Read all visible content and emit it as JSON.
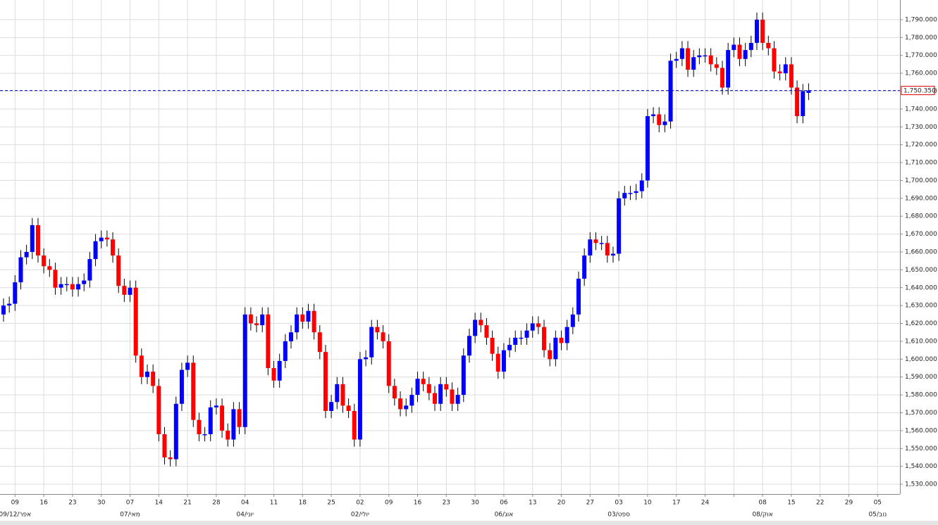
{
  "chart_data": {
    "type": "candlestick",
    "up_color": "#0000ff",
    "down_color": "#ff0000",
    "grid": true,
    "ylim": [
      1524.5,
      1801
    ],
    "yticks": [
      {
        "value": 1530,
        "label": "1,530.000"
      },
      {
        "value": 1540,
        "label": "1,540.000"
      },
      {
        "value": 1550,
        "label": "1,550.000"
      },
      {
        "value": 1560,
        "label": "1,560.000"
      },
      {
        "value": 1570,
        "label": "1,570.000"
      },
      {
        "value": 1580,
        "label": "1,580.000"
      },
      {
        "value": 1590,
        "label": "1,590.000"
      },
      {
        "value": 1600,
        "label": "1,600.000"
      },
      {
        "value": 1610,
        "label": "1,610.000"
      },
      {
        "value": 1620,
        "label": "1,620.000"
      },
      {
        "value": 1630,
        "label": "1,630.000"
      },
      {
        "value": 1640,
        "label": "1,640.000"
      },
      {
        "value": 1650,
        "label": "1,650.000"
      },
      {
        "value": 1660,
        "label": "1,660.000"
      },
      {
        "value": 1670,
        "label": "1,670.000"
      },
      {
        "value": 1680,
        "label": "1,680.000"
      },
      {
        "value": 1690,
        "label": "1,690.000"
      },
      {
        "value": 1700,
        "label": "1,700.000"
      },
      {
        "value": 1710,
        "label": "1,710.000"
      },
      {
        "value": 1720,
        "label": "1,720.000"
      },
      {
        "value": 1730,
        "label": "1,730.000"
      },
      {
        "value": 1740,
        "label": "1,740.000"
      },
      {
        "value": 1750,
        "label": "1,750.000"
      },
      {
        "value": 1760,
        "label": "1,760.000"
      },
      {
        "value": 1770,
        "label": "1,770.000"
      },
      {
        "value": 1780,
        "label": "1,780.000"
      },
      {
        "value": 1790,
        "label": "1,790.000"
      }
    ],
    "last_price": {
      "value": 1750.35,
      "label": "1,750.350",
      "color": "#0000cc"
    },
    "categories": [
      null,
      null,
      "09",
      null,
      null,
      null,
      null,
      "16",
      null,
      null,
      null,
      null,
      "23",
      null,
      null,
      null,
      null,
      "30",
      null,
      null,
      null,
      null,
      "07",
      null,
      null,
      null,
      null,
      "14",
      null,
      null,
      null,
      null,
      "21",
      null,
      null,
      null,
      null,
      "28",
      null,
      null,
      null,
      null,
      "04",
      null,
      null,
      null,
      null,
      "11",
      null,
      null,
      null,
      null,
      "18",
      null,
      null,
      null,
      null,
      "25",
      null,
      null,
      null,
      null,
      "02",
      null,
      null,
      null,
      null,
      "09",
      null,
      null,
      null,
      null,
      "16",
      null,
      null,
      null,
      null,
      "23",
      null,
      null,
      null,
      null,
      "30",
      null,
      null,
      null,
      null,
      "06",
      null,
      null,
      null,
      null,
      "13",
      null,
      null,
      null,
      null,
      "20",
      null,
      null,
      null,
      null,
      "27",
      null,
      null,
      null,
      null,
      "03",
      null,
      null,
      null,
      null,
      "10",
      null,
      null,
      null,
      null,
      "17",
      null,
      null,
      null,
      null,
      "24",
      null,
      null,
      null,
      null,
      null,
      null,
      null,
      null,
      null,
      "08",
      null,
      null,
      null,
      null,
      "15",
      null,
      null,
      null,
      null,
      "22",
      null,
      null,
      null,
      null,
      "29",
      null,
      null,
      null,
      null,
      "05"
    ],
    "categories2": [
      null,
      null,
      "09/12/אפר",
      null,
      null,
      null,
      null,
      null,
      null,
      null,
      null,
      null,
      null,
      null,
      null,
      null,
      null,
      null,
      null,
      null,
      null,
      null,
      "מאי/07",
      null,
      null,
      null,
      null,
      null,
      null,
      null,
      null,
      null,
      null,
      null,
      null,
      null,
      null,
      null,
      null,
      null,
      null,
      null,
      "יוני/04",
      null,
      null,
      null,
      null,
      null,
      null,
      null,
      null,
      null,
      null,
      null,
      null,
      null,
      null,
      null,
      null,
      null,
      null,
      null,
      "יולי/02",
      null,
      null,
      null,
      null,
      null,
      null,
      null,
      null,
      null,
      null,
      null,
      null,
      null,
      null,
      null,
      null,
      null,
      null,
      null,
      null,
      null,
      null,
      null,
      null,
      "אוג/06",
      null,
      null,
      null,
      null,
      null,
      null,
      null,
      null,
      null,
      null,
      null,
      null,
      null,
      null,
      null,
      null,
      null,
      null,
      null,
      "ספט/03",
      null,
      null,
      null,
      null,
      null,
      null,
      null,
      null,
      null,
      null,
      null,
      null,
      null,
      null,
      null,
      null,
      null,
      null,
      null,
      null,
      null,
      null,
      null,
      null,
      "אוק/08",
      null,
      null,
      null,
      null,
      null,
      null,
      null,
      null,
      null,
      null,
      null,
      null,
      null,
      null,
      null,
      null,
      null,
      null,
      null,
      "נוב/05"
    ],
    "open": [
      1625,
      1630,
      1631,
      1643,
      1657,
      1660,
      1675,
      1658,
      1652,
      1650,
      1640,
      1642,
      1642,
      1639,
      1642,
      1644,
      1656,
      1666,
      1668,
      1667,
      1658,
      1641,
      1636,
      1640,
      1602,
      1590,
      1593,
      1585,
      1558,
      1545,
      1544,
      1575,
      1594,
      1598,
      1566,
      1558,
      1558,
      1573,
      1574,
      1560,
      1555,
      1572,
      1562,
      1625,
      1620,
      1619,
      1625,
      1595,
      1588,
      1599,
      1610,
      1615,
      1625,
      1621,
      1627,
      1615,
      1604,
      1571,
      1576,
      1586,
      1574,
      1571,
      1555,
      1600,
      1601,
      1618,
      1615,
      1610,
      1585,
      1578,
      1572,
      1574,
      1580,
      1589,
      1586,
      1581,
      1575,
      1586,
      1583,
      1575,
      1580,
      1602,
      1613,
      1622,
      1619,
      1612,
      1603,
      1593,
      1605,
      1608,
      1612,
      1612,
      1616,
      1620,
      1618,
      1605,
      1600,
      1612,
      1609,
      1618,
      1625,
      1645,
      1658,
      1667,
      1665,
      1665,
      1658,
      1659,
      1690,
      1693,
      1693,
      1694,
      1700,
      1736,
      1737,
      1731,
      1733,
      1767,
      1768,
      1774,
      1762,
      1769,
      1770,
      1770,
      1765,
      1763,
      1752,
      1773,
      1776,
      1768,
      1773,
      1777,
      1790,
      1777,
      1774,
      1761,
      1760,
      1765,
      1752,
      1736,
      1749,
      null,
      null,
      null,
      null,
      null,
      null,
      null,
      null,
      null,
      null,
      null,
      null
    ],
    "high": [
      1634,
      1635,
      1647,
      1661,
      1664,
      1679,
      1679,
      1662,
      1656,
      1654,
      1646,
      1646,
      1646,
      1646,
      1648,
      1660,
      1670,
      1672,
      1672,
      1671,
      1662,
      1645,
      1644,
      1644,
      1606,
      1597,
      1597,
      1589,
      1562,
      1549,
      1579,
      1598,
      1602,
      1602,
      1570,
      1562,
      1577,
      1578,
      1578,
      1564,
      1576,
      1576,
      1629,
      1629,
      1624,
      1629,
      1629,
      1599,
      1603,
      1614,
      1619,
      1629,
      1629,
      1631,
      1631,
      1619,
      1608,
      1580,
      1590,
      1590,
      1578,
      1575,
      1604,
      1605,
      1622,
      1622,
      1619,
      1614,
      1589,
      1582,
      1578,
      1584,
      1593,
      1593,
      1590,
      1585,
      1590,
      1590,
      1587,
      1584,
      1606,
      1617,
      1626,
      1626,
      1623,
      1616,
      1607,
      1609,
      1612,
      1616,
      1616,
      1620,
      1624,
      1624,
      1622,
      1609,
      1616,
      1616,
      1622,
      1629,
      1649,
      1662,
      1671,
      1671,
      1669,
      1669,
      1663,
      1694,
      1697,
      1697,
      1698,
      1704,
      1740,
      1741,
      1741,
      1737,
      1771,
      1772,
      1778,
      1778,
      1773,
      1774,
      1774,
      1774,
      1769,
      1767,
      1777,
      1780,
      1780,
      1777,
      1781,
      1794,
      1794,
      1781,
      1778,
      1765,
      1769,
      1769,
      1756,
      1754,
      1754.35,
      null,
      null,
      null,
      null,
      null,
      null,
      null,
      null,
      null,
      null,
      null,
      null
    ],
    "low": [
      1621,
      1626,
      1627,
      1639,
      1653,
      1656,
      1654,
      1648,
      1646,
      1636,
      1636,
      1638,
      1635,
      1635,
      1638,
      1640,
      1652,
      1662,
      1663,
      1654,
      1637,
      1632,
      1632,
      1598,
      1586,
      1586,
      1581,
      1554,
      1541,
      1540,
      1540,
      1571,
      1590,
      1562,
      1554,
      1554,
      1554,
      1569,
      1556,
      1551,
      1551,
      1558,
      1558,
      1616,
      1615,
      1615,
      1591,
      1584,
      1584,
      1595,
      1606,
      1611,
      1617,
      1617,
      1611,
      1600,
      1567,
      1567,
      1572,
      1570,
      1567,
      1551,
      1551,
      1596,
      1597,
      1611,
      1606,
      1581,
      1574,
      1568,
      1568,
      1570,
      1576,
      1582,
      1577,
      1571,
      1571,
      1579,
      1571,
      1571,
      1576,
      1598,
      1609,
      1615,
      1608,
      1599,
      1589,
      1589,
      1601,
      1604,
      1608,
      1608,
      1612,
      1614,
      1601,
      1596,
      1596,
      1605,
      1605,
      1614,
      1621,
      1641,
      1654,
      1661,
      1661,
      1654,
      1654,
      1655,
      1686,
      1689,
      1689,
      1690,
      1696,
      1732,
      1727,
      1727,
      1729,
      1763,
      1764,
      1758,
      1758,
      1765,
      1766,
      1761,
      1759,
      1748,
      1748,
      1769,
      1764,
      1764,
      1769,
      1773,
      1773,
      1770,
      1757,
      1756,
      1756,
      1748,
      1732,
      1732,
      1745,
      null,
      null,
      null,
      null,
      null,
      null,
      null,
      null,
      null,
      null,
      null,
      null
    ],
    "close": [
      1630,
      1631,
      1643,
      1657,
      1660,
      1675,
      1658,
      1652,
      1650,
      1640,
      1642,
      1642,
      1639,
      1642,
      1644,
      1656,
      1666,
      1668,
      1667,
      1658,
      1641,
      1636,
      1640,
      1602,
      1590,
      1593,
      1585,
      1558,
      1545,
      1544,
      1575,
      1594,
      1598,
      1566,
      1558,
      1558,
      1573,
      1574,
      1560,
      1555,
      1572,
      1562,
      1625,
      1620,
      1619,
      1625,
      1595,
      1588,
      1599,
      1610,
      1615,
      1625,
      1621,
      1627,
      1615,
      1604,
      1571,
      1576,
      1586,
      1574,
      1571,
      1555,
      1600,
      1601,
      1618,
      1615,
      1610,
      1585,
      1578,
      1572,
      1574,
      1580,
      1589,
      1586,
      1581,
      1575,
      1586,
      1583,
      1575,
      1580,
      1602,
      1613,
      1622,
      1619,
      1612,
      1603,
      1593,
      1605,
      1608,
      1612,
      1612,
      1616,
      1620,
      1618,
      1605,
      1600,
      1612,
      1609,
      1618,
      1625,
      1645,
      1658,
      1667,
      1665,
      1665,
      1658,
      1659,
      1690,
      1693,
      1693,
      1694,
      1700,
      1736,
      1737,
      1731,
      1733,
      1767,
      1768,
      1774,
      1762,
      1769,
      1770,
      1770,
      1765,
      1763,
      1752,
      1773,
      1776,
      1768,
      1773,
      1777,
      1790,
      1777,
      1774,
      1761,
      1760,
      1765,
      1752,
      1736,
      1750,
      1750.35,
      null,
      null,
      null,
      null,
      null,
      null,
      null,
      null,
      null,
      null,
      null,
      null
    ]
  }
}
